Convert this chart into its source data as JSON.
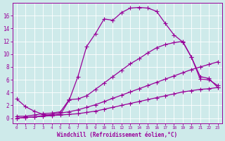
{
  "xlabel": "Windchill (Refroidissement éolien,°C)",
  "bg_color": "#ceeaea",
  "line_color": "#990099",
  "grid_color": "#b8d8d8",
  "xlim": [
    -0.5,
    23.5
  ],
  "ylim": [
    -0.8,
    18
  ],
  "xticks": [
    0,
    1,
    2,
    3,
    4,
    5,
    6,
    7,
    8,
    9,
    10,
    11,
    12,
    13,
    14,
    15,
    16,
    17,
    18,
    19,
    20,
    21,
    22,
    23
  ],
  "yticks": [
    0,
    2,
    4,
    6,
    8,
    10,
    12,
    14,
    16
  ],
  "series1_x": [
    0,
    1,
    2,
    3,
    4,
    5,
    6,
    7,
    8,
    9,
    10,
    11,
    12,
    13,
    14,
    15,
    16,
    17,
    18,
    19,
    20,
    21,
    22,
    23
  ],
  "series1_y": [
    3.0,
    1.8,
    1.1,
    0.6,
    0.4,
    0.6,
    2.8,
    6.5,
    11.2,
    13.2,
    15.5,
    15.3,
    16.5,
    17.2,
    17.3,
    17.2,
    16.7,
    14.8,
    13.0,
    11.9,
    9.5,
    6.1,
    6.0,
    5.1
  ],
  "series2_x": [
    0,
    1,
    2,
    3,
    4,
    5,
    6,
    7,
    8,
    9,
    10,
    11,
    12,
    13,
    14,
    15,
    16,
    17,
    18,
    19,
    20,
    21,
    22,
    23
  ],
  "series2_y": [
    0.3,
    0.3,
    0.5,
    0.7,
    0.8,
    1.0,
    2.9,
    3.0,
    3.5,
    4.5,
    5.5,
    6.5,
    7.5,
    8.5,
    9.3,
    10.2,
    11.0,
    11.5,
    11.8,
    12.0,
    9.5,
    6.5,
    6.2,
    4.8
  ],
  "series3_x": [
    0,
    1,
    2,
    3,
    4,
    5,
    6,
    7,
    8,
    9,
    10,
    11,
    12,
    13,
    14,
    15,
    16,
    17,
    18,
    19,
    20,
    21,
    22,
    23
  ],
  "series3_y": [
    0.0,
    0.1,
    0.2,
    0.4,
    0.6,
    0.8,
    1.0,
    1.3,
    1.7,
    2.1,
    2.6,
    3.1,
    3.6,
    4.1,
    4.6,
    5.1,
    5.6,
    6.1,
    6.6,
    7.1,
    7.6,
    8.0,
    8.4,
    8.8
  ],
  "series4_x": [
    0,
    1,
    2,
    3,
    4,
    5,
    6,
    7,
    8,
    9,
    10,
    11,
    12,
    13,
    14,
    15,
    16,
    17,
    18,
    19,
    20,
    21,
    22,
    23
  ],
  "series4_y": [
    0.0,
    0.1,
    0.2,
    0.3,
    0.4,
    0.5,
    0.6,
    0.7,
    0.9,
    1.1,
    1.4,
    1.7,
    2.0,
    2.3,
    2.6,
    2.9,
    3.2,
    3.5,
    3.8,
    4.1,
    4.3,
    4.5,
    4.6,
    4.8
  ]
}
